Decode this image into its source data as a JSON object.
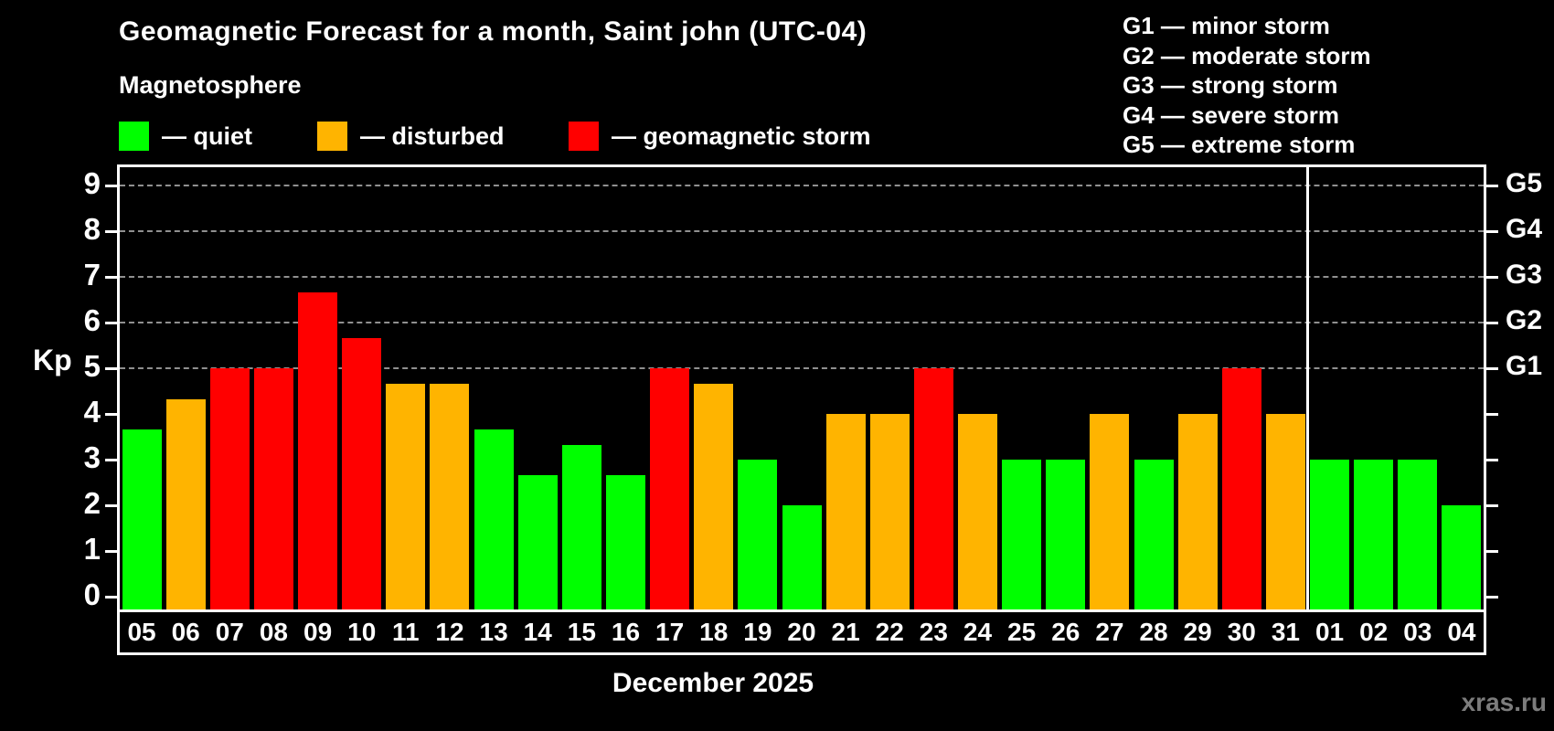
{
  "header": {
    "title": "Geomagnetic Forecast for a month, Saint john (UTC-04)",
    "subtitle": "Magnetosphere",
    "legend": [
      {
        "key": "quiet",
        "label": "— quiet",
        "color": "#00ff00",
        "x": 130
      },
      {
        "key": "disturbed",
        "label": "— disturbed",
        "color": "#ffb400",
        "x": 347
      },
      {
        "key": "storm",
        "label": "— geomagnetic storm",
        "color": "#ff0000",
        "x": 622
      }
    ],
    "g_scale_legend": [
      "G1 — minor storm",
      "G2 — moderate storm",
      "G3 — strong storm",
      "G4 — severe storm",
      "G5 — extreme storm"
    ]
  },
  "chart_data": {
    "type": "bar",
    "title": "Geomagnetic Forecast for a month, Saint john (UTC-04)",
    "xlabel": "December 2025",
    "ylabel": "Kp",
    "ylim": [
      0,
      9.4
    ],
    "grid": "dashed horizontal at Kp 5-9 only",
    "yticks": [
      0,
      1,
      2,
      3,
      4,
      5,
      6,
      7,
      8,
      9
    ],
    "gridlines_at": [
      5,
      6,
      7,
      8,
      9
    ],
    "right_axis_labels": [
      {
        "kp": 5,
        "label": "G1"
      },
      {
        "kp": 6,
        "label": "G2"
      },
      {
        "kp": 7,
        "label": "G3"
      },
      {
        "kp": 8,
        "label": "G4"
      },
      {
        "kp": 9,
        "label": "G5"
      }
    ],
    "categories": [
      "05",
      "06",
      "07",
      "08",
      "09",
      "10",
      "11",
      "12",
      "13",
      "14",
      "15",
      "16",
      "17",
      "18",
      "19",
      "20",
      "21",
      "22",
      "23",
      "24",
      "25",
      "26",
      "27",
      "28",
      "29",
      "30",
      "31",
      "01",
      "02",
      "03",
      "04"
    ],
    "values": [
      3.67,
      4.33,
      5.0,
      5.0,
      6.67,
      5.67,
      4.67,
      4.67,
      3.67,
      2.67,
      3.33,
      2.67,
      5.0,
      4.67,
      3.0,
      2.0,
      4.0,
      4.0,
      5.0,
      4.0,
      3.0,
      3.0,
      4.0,
      3.0,
      4.0,
      5.0,
      4.0,
      3.0,
      3.0,
      3.0,
      2.0
    ],
    "statuses": [
      "quiet",
      "disturbed",
      "storm",
      "storm",
      "storm",
      "storm",
      "disturbed",
      "disturbed",
      "quiet",
      "quiet",
      "quiet",
      "quiet",
      "storm",
      "disturbed",
      "quiet",
      "quiet",
      "disturbed",
      "disturbed",
      "storm",
      "disturbed",
      "quiet",
      "quiet",
      "disturbed",
      "quiet",
      "disturbed",
      "storm",
      "disturbed",
      "quiet",
      "quiet",
      "quiet",
      "quiet"
    ],
    "month_separator_after_index": 26,
    "colors": {
      "quiet": "#00ff00",
      "disturbed": "#ffb400",
      "storm": "#ff0000"
    },
    "legend_position": "top-left"
  },
  "footer": {
    "month_label": "December 2025",
    "watermark": "xras.ru"
  }
}
